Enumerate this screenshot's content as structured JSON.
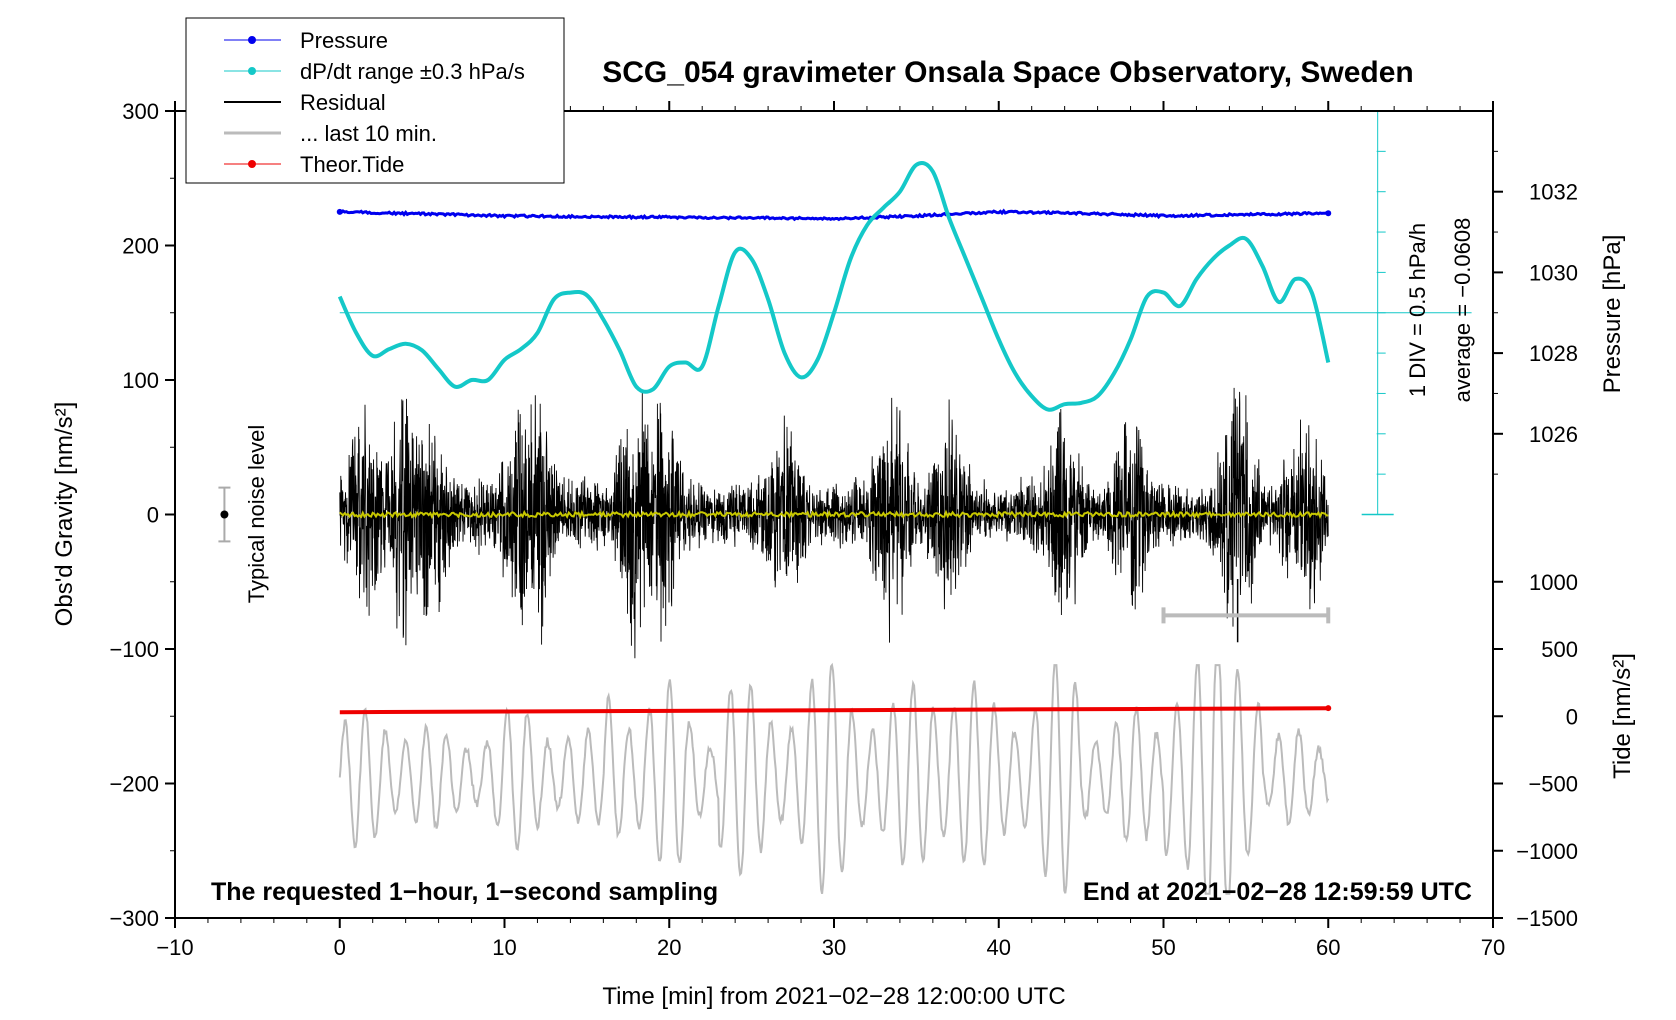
{
  "chart_data": {
    "type": "line",
    "title": "SCG_054 gravimeter Onsala Space Observatory, Sweden",
    "xlabel": "Time [min] from 2021−02−28 12:00:00 UTC",
    "ylabel": "Obs'd Gravity [nm/s²]",
    "xlim": [
      -10,
      70
    ],
    "ylim": [
      -300,
      300
    ],
    "x_ticks": [
      "−10",
      "0",
      "10",
      "20",
      "30",
      "40",
      "50",
      "60",
      "70"
    ],
    "y_ticks": [
      "−300",
      "−200",
      "−100",
      "0",
      "100",
      "200",
      "300"
    ],
    "right_axis_pressure": {
      "label": "Pressure [hPa]",
      "ticks": [
        "1026",
        "1028",
        "1030",
        "1032"
      ],
      "scale": {
        "value_a": 1032,
        "gravity_a": 240,
        "value_b": 1026,
        "gravity_b": 60
      }
    },
    "right_axis_tide": {
      "label": "Tide [nm/s²]",
      "ticks": [
        "−1500",
        "−1000",
        "−500",
        "0",
        "500",
        "1000"
      ],
      "scale": {
        "value_a": 1000,
        "gravity_a": -50,
        "value_b": -1500,
        "gravity_b": -300
      }
    },
    "legend": {
      "position": "top-left",
      "entries": [
        "Pressure",
        "dP/dt range ±0.3 hPa/s",
        "Residual",
        "... last 10 min.",
        "Theor.Tide"
      ]
    },
    "annotations": {
      "bottom_left": "The requested 1−hour, 1−second sampling",
      "bottom_right": "End at 2021−02−28 12:59:59 UTC",
      "noise": "Typical noise level",
      "div": "1 DIV = 0.5 hPa/h",
      "average": "average = −0.0608"
    },
    "noise_bar": {
      "x": -7,
      "y": 0,
      "half_range": 20
    },
    "last10_bar": {
      "x_from": 50,
      "x_to": 60,
      "y": -75
    },
    "dpdt_scale_axis": {
      "x": 63,
      "y_from": 0,
      "y_to": 300,
      "reference_y": 150
    },
    "series": [
      {
        "name": "Pressure",
        "color": "#0000ee",
        "x": [
          0,
          10,
          20,
          30,
          35,
          40,
          45,
          50,
          55,
          60
        ],
        "y": [
          225,
          222,
          221,
          220,
          222,
          225,
          224,
          222,
          223,
          224
        ]
      },
      {
        "name": "dP/dt",
        "color": "#14c8c8",
        "x": [
          0,
          1,
          2,
          3,
          4,
          5,
          6,
          7,
          8,
          9,
          10,
          11,
          12,
          13,
          14,
          15,
          16,
          17,
          18,
          19,
          20,
          21,
          22,
          23,
          24,
          25,
          26,
          27,
          28,
          29,
          30,
          31,
          32,
          33,
          34,
          35,
          36,
          37,
          38,
          39,
          40,
          41,
          42,
          43,
          44,
          45,
          46,
          47,
          48,
          49,
          50,
          51,
          52,
          53,
          54,
          55,
          56,
          57,
          58,
          59,
          60
        ],
        "y": [
          162,
          135,
          118,
          123,
          127,
          122,
          108,
          95,
          100,
          100,
          115,
          123,
          135,
          160,
          165,
          163,
          145,
          122,
          95,
          93,
          110,
          113,
          110,
          155,
          195,
          190,
          160,
          120,
          102,
          115,
          150,
          190,
          215,
          228,
          240,
          260,
          255,
          220,
          190,
          160,
          130,
          105,
          88,
          78,
          82,
          83,
          88,
          105,
          130,
          162,
          165,
          155,
          175,
          190,
          200,
          205,
          185,
          158,
          175,
          165,
          113
        ]
      },
      {
        "name": "Residual",
        "color": "#000000",
        "description": "1-second residual trace, spikes to about ±100 nm/s²"
      },
      {
        "name": "Residual smoothed",
        "color": "#c8c800",
        "y_approx": 0
      },
      {
        "name": "Theor.Tide",
        "color": "#ee0000",
        "x": [
          0,
          10,
          20,
          30,
          40,
          50,
          60
        ],
        "y": [
          -147,
          -146.5,
          -146,
          -145.5,
          -145,
          -144.5,
          -144
        ]
      },
      {
        "name": "... last 10 min.",
        "color": "#bbbbbb",
        "description": "gray oscillation trace, −280 to −115 nm/s²"
      }
    ]
  }
}
